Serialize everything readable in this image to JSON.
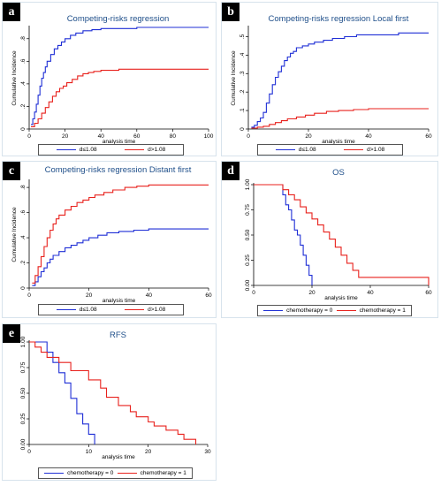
{
  "colors": {
    "series_1": "#1f2fd6",
    "series_2": "#e8211c",
    "title": "#1f4f8a",
    "border": "#d7e3ec"
  },
  "panels": [
    {
      "id": "a",
      "chart_data": {
        "type": "line",
        "step": true,
        "title": "Competing-risks regression",
        "xlabel": "analysis time",
        "ylabel": "Cumulative Incidence",
        "xlim": [
          0,
          100
        ],
        "ylim": [
          0,
          0.9
        ],
        "xticks": [
          0,
          20,
          40,
          60,
          80,
          100
        ],
        "yticks": [
          0,
          0.2,
          0.4,
          0.6,
          0.8
        ],
        "ytick_labels": [
          "0",
          ".2",
          ".4",
          ".6",
          ".8"
        ],
        "legend": "bottom",
        "series": [
          {
            "name": "d≤1.08",
            "color": "#1f2fd6",
            "x": [
              1,
              2,
              3,
              4,
              5,
              6,
              7,
              8,
              9,
              10,
              12,
              14,
              16,
              18,
              20,
              23,
              26,
              30,
              35,
              40,
              50,
              60,
              100
            ],
            "y": [
              0.04,
              0.09,
              0.15,
              0.22,
              0.3,
              0.38,
              0.45,
              0.5,
              0.55,
              0.6,
              0.66,
              0.71,
              0.74,
              0.77,
              0.8,
              0.83,
              0.85,
              0.87,
              0.88,
              0.89,
              0.89,
              0.9,
              0.9
            ]
          },
          {
            "name": "d>1.08",
            "color": "#e8211c",
            "x": [
              1,
              3,
              5,
              7,
              9,
              11,
              13,
              15,
              17,
              19,
              21,
              24,
              27,
              30,
              33,
              36,
              40,
              45,
              50,
              60,
              100
            ],
            "y": [
              0.02,
              0.05,
              0.09,
              0.14,
              0.19,
              0.24,
              0.29,
              0.33,
              0.36,
              0.38,
              0.41,
              0.44,
              0.47,
              0.49,
              0.5,
              0.51,
              0.52,
              0.52,
              0.53,
              0.53,
              0.53
            ]
          }
        ]
      }
    },
    {
      "id": "b",
      "chart_data": {
        "type": "line",
        "step": true,
        "title": "Competing-risks regression Local first",
        "xlabel": "analysis time",
        "ylabel": "Cumulative Incidence",
        "xlim": [
          0,
          60
        ],
        "ylim": [
          0,
          0.55
        ],
        "xticks": [
          0,
          20,
          40,
          60
        ],
        "yticks": [
          0,
          0.1,
          0.2,
          0.3,
          0.4,
          0.5
        ],
        "ytick_labels": [
          "0",
          ".1",
          ".2",
          ".3",
          ".4",
          ".5"
        ],
        "legend": "bottom",
        "series": [
          {
            "name": "d≤1.08",
            "color": "#1f2fd6",
            "x": [
              1,
              2,
              3,
              4,
              5,
              6,
              7,
              8,
              9,
              10,
              11,
              12,
              13,
              14,
              15,
              16,
              18,
              20,
              22,
              25,
              28,
              32,
              36,
              42,
              50,
              60
            ],
            "y": [
              0.01,
              0.02,
              0.04,
              0.06,
              0.09,
              0.14,
              0.19,
              0.24,
              0.28,
              0.31,
              0.34,
              0.37,
              0.39,
              0.41,
              0.42,
              0.44,
              0.45,
              0.46,
              0.47,
              0.48,
              0.49,
              0.5,
              0.51,
              0.51,
              0.52,
              0.52
            ]
          },
          {
            "name": "d>1.08",
            "color": "#e8211c",
            "x": [
              1,
              3,
              5,
              7,
              9,
              11,
              13,
              16,
              19,
              22,
              26,
              30,
              35,
              40,
              50,
              60
            ],
            "y": [
              0.005,
              0.01,
              0.015,
              0.025,
              0.035,
              0.045,
              0.055,
              0.065,
              0.075,
              0.085,
              0.095,
              0.1,
              0.105,
              0.11,
              0.11,
              0.11
            ]
          }
        ]
      }
    },
    {
      "id": "c",
      "chart_data": {
        "type": "line",
        "step": true,
        "title": "Competing-risks regression Distant first",
        "xlabel": "analysis time",
        "ylabel": "Cumulative Incidence",
        "xlim": [
          0,
          60
        ],
        "ylim": [
          0,
          0.85
        ],
        "xticks": [
          0,
          20,
          40,
          60
        ],
        "yticks": [
          0,
          0.2,
          0.4,
          0.6,
          0.8
        ],
        "ytick_labels": [
          "0",
          ".2",
          ".4",
          ".6",
          ".8"
        ],
        "legend": "bottom",
        "series": [
          {
            "name": "d≤1.08",
            "color": "#1f2fd6",
            "x": [
              1,
              2,
              3,
              4,
              5,
              6,
              7,
              8,
              10,
              12,
              14,
              16,
              18,
              20,
              23,
              26,
              30,
              35,
              40,
              60
            ],
            "y": [
              0.02,
              0.05,
              0.09,
              0.13,
              0.16,
              0.2,
              0.23,
              0.26,
              0.29,
              0.32,
              0.34,
              0.36,
              0.38,
              0.4,
              0.42,
              0.44,
              0.45,
              0.46,
              0.47,
              0.47
            ]
          },
          {
            "name": "d>1.08",
            "color": "#e8211c",
            "x": [
              1,
              2,
              3,
              4,
              5,
              6,
              7,
              8,
              9,
              10,
              12,
              14,
              16,
              18,
              20,
              22,
              25,
              28,
              32,
              36,
              40,
              60
            ],
            "y": [
              0.04,
              0.1,
              0.17,
              0.25,
              0.33,
              0.4,
              0.46,
              0.51,
              0.55,
              0.58,
              0.62,
              0.65,
              0.68,
              0.7,
              0.72,
              0.74,
              0.76,
              0.78,
              0.8,
              0.81,
              0.82,
              0.82
            ]
          }
        ]
      }
    },
    {
      "id": "d",
      "chart_data": {
        "type": "line",
        "step": true,
        "title": "OS",
        "xlabel": "analysis time",
        "ylabel": "",
        "xlim": [
          0,
          60
        ],
        "ylim": [
          0,
          1
        ],
        "xticks": [
          0,
          20,
          40,
          60
        ],
        "yticks": [
          0,
          0.25,
          0.5,
          0.75,
          1
        ],
        "ytick_labels": [
          "0.00",
          "0.25",
          "0.50",
          "0.75",
          "1.00"
        ],
        "legend": "bottom",
        "series": [
          {
            "name": "chemotherapy = 0",
            "color": "#1f2fd6",
            "x": [
              0,
              9,
              10,
              11,
              12,
              13,
              14,
              15,
              16,
              17,
              18,
              19,
              20
            ],
            "y": [
              1,
              1,
              0.9,
              0.8,
              0.75,
              0.65,
              0.55,
              0.5,
              0.4,
              0.3,
              0.2,
              0.1,
              0.0
            ]
          },
          {
            "name": "chemotherapy = 1",
            "color": "#e8211c",
            "x": [
              0,
              9,
              10,
              12,
              14,
              16,
              18,
              20,
              22,
              24,
              26,
              28,
              30,
              32,
              34,
              36,
              60
            ],
            "y": [
              1,
              1,
              0.95,
              0.9,
              0.85,
              0.78,
              0.72,
              0.66,
              0.6,
              0.53,
              0.46,
              0.38,
              0.3,
              0.22,
              0.15,
              0.08,
              0.0
            ]
          }
        ]
      }
    },
    {
      "id": "e",
      "chart_data": {
        "type": "line",
        "step": true,
        "title": "RFS",
        "xlabel": "analysis time",
        "ylabel": "",
        "xlim": [
          0,
          30
        ],
        "ylim": [
          0,
          1
        ],
        "xticks": [
          0,
          10,
          20,
          30
        ],
        "yticks": [
          0,
          0.25,
          0.5,
          0.75,
          1
        ],
        "ytick_labels": [
          "0.00",
          "0.25",
          "0.50",
          "0.75",
          "1.00"
        ],
        "legend": "bottom",
        "series": [
          {
            "name": "chemotherapy = 0",
            "color": "#1f2fd6",
            "x": [
              0,
              2,
              3,
              4,
              5,
              6,
              7,
              8,
              9,
              10,
              11
            ],
            "y": [
              1,
              1,
              0.9,
              0.8,
              0.7,
              0.6,
              0.45,
              0.3,
              0.2,
              0.1,
              0.0
            ]
          },
          {
            "name": "chemotherapy = 1",
            "color": "#e8211c",
            "x": [
              0,
              1,
              2,
              3,
              5,
              7,
              10,
              12,
              13,
              15,
              17,
              18,
              20,
              21,
              23,
              25,
              26,
              28
            ],
            "y": [
              1,
              0.95,
              0.9,
              0.85,
              0.8,
              0.72,
              0.63,
              0.55,
              0.46,
              0.38,
              0.32,
              0.27,
              0.22,
              0.18,
              0.14,
              0.1,
              0.05,
              0.0
            ]
          }
        ]
      }
    }
  ]
}
